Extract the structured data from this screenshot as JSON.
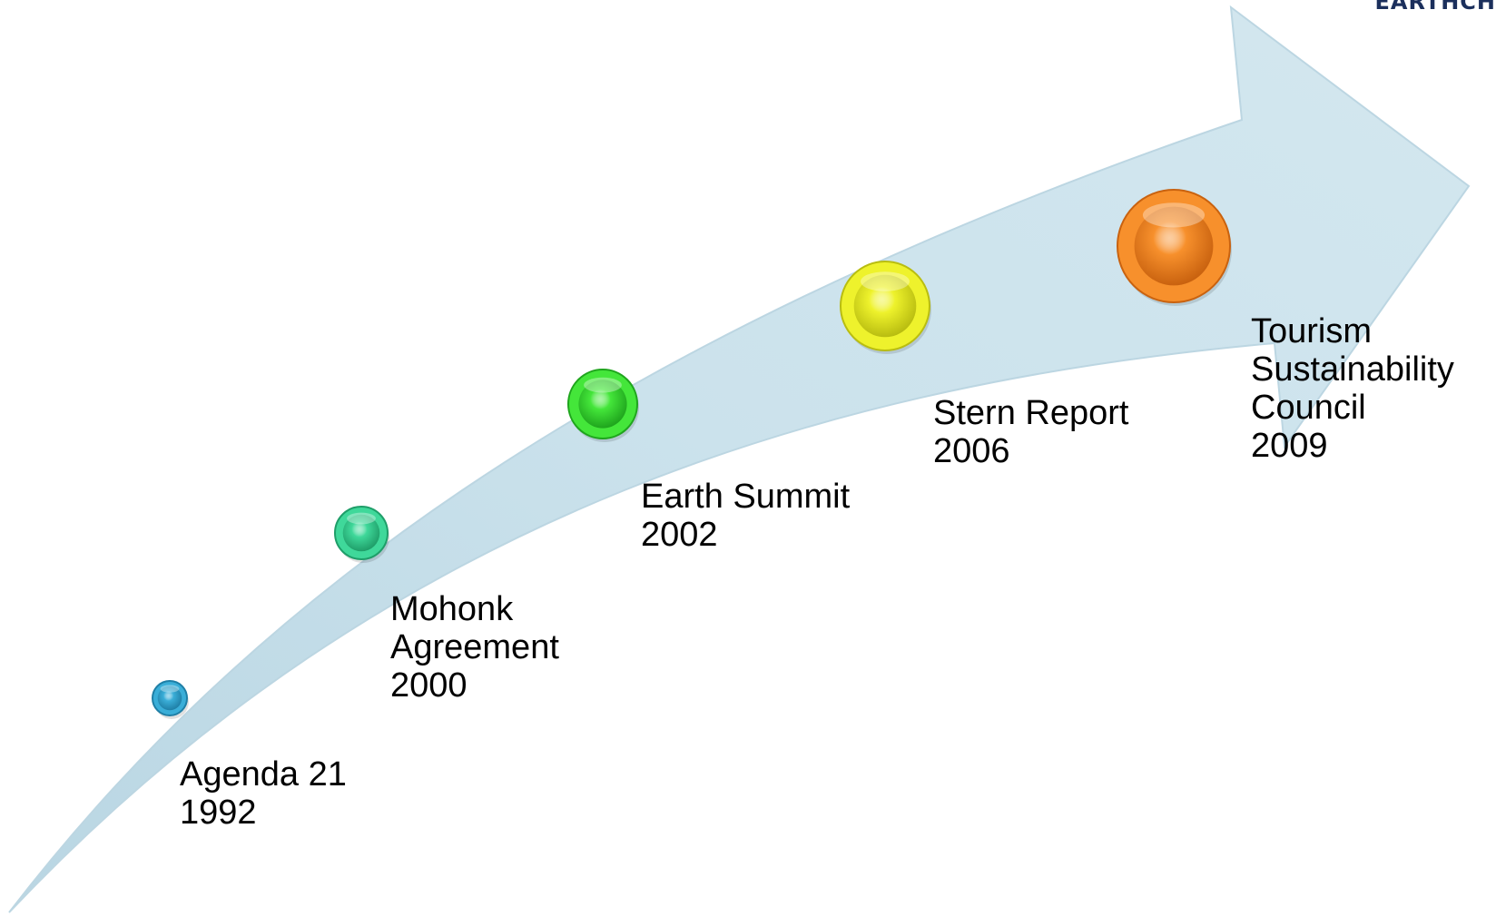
{
  "brand": {
    "text": "EARTHCH"
  },
  "arrow": {
    "color": "#c9e0ea",
    "edge_color": "#b6d2de"
  },
  "events": [
    {
      "name": "Agenda 21",
      "lines": [
        "Agenda 21",
        "1992"
      ],
      "year": "1992",
      "color": "#3aaed8",
      "dark": "#1f7fa6"
    },
    {
      "name": "Mohonk Agreement",
      "lines": [
        "Mohonk",
        "Agreement",
        "2000"
      ],
      "year": "2000",
      "color": "#3fd89a",
      "dark": "#1f9e69"
    },
    {
      "name": "Earth Summit",
      "lines": [
        "Earth Summit",
        "2002"
      ],
      "year": "2002",
      "color": "#44e63a",
      "dark": "#1fa51d"
    },
    {
      "name": "Stern Report",
      "lines": [
        "Stern Report",
        "2006"
      ],
      "year": "2006",
      "color": "#eef22c",
      "dark": "#b9bd10"
    },
    {
      "name": "Tourism Sustainability Council",
      "lines": [
        "Tourism",
        "Sustainability",
        "Council",
        "2009"
      ],
      "year": "2009",
      "color": "#f7902c",
      "dark": "#c9620f"
    }
  ]
}
